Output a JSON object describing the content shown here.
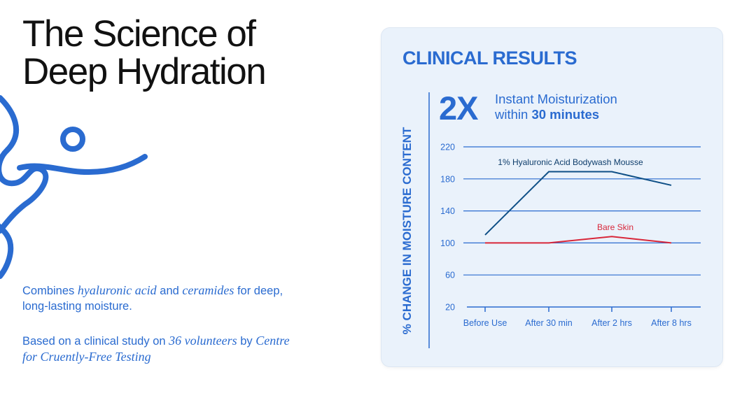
{
  "headline": {
    "line1": "The Science of",
    "line2": "Deep Hydration"
  },
  "description": {
    "p1": {
      "t1": "Combines ",
      "t2": "hyaluronic acid",
      "t3": " and ",
      "t4": "ceramides",
      "t5": " for deep, long-lasting moisture."
    },
    "p2": {
      "t1": "Based on a clinical study on ",
      "t2": "36 volunteers",
      "t3": " by ",
      "t4": "Centre for Cruently-Free Testing"
    }
  },
  "card": {
    "title": "CLINICAL RESULTS",
    "big_number": "2X",
    "big_text": "Instant Moisturization",
    "big_text2_prefix": "within ",
    "big_text2_bold": "30 minutes"
  },
  "colors": {
    "accent": "#2a6bd0",
    "series1": "#0e4f86",
    "series2": "#d8273a",
    "text": "#111111"
  },
  "chart_data": {
    "type": "line",
    "title": "",
    "xlabel": "",
    "ylabel": "% CHANGE IN MOISTURE CONTENT",
    "categories": [
      "Before Use",
      "After 30 min",
      "After 2 hrs",
      "After 8 hrs"
    ],
    "yticks": [
      20,
      60,
      100,
      140,
      180,
      220
    ],
    "ylim": [
      20,
      220
    ],
    "grid": true,
    "series": [
      {
        "name": "1% Hyaluronic Acid Bodywash Mousse",
        "color": "#0e4f86",
        "values": [
          110,
          189,
          189,
          172
        ]
      },
      {
        "name": "Bare Skin",
        "color": "#d8273a",
        "values": [
          100,
          100,
          108,
          100
        ]
      }
    ]
  }
}
